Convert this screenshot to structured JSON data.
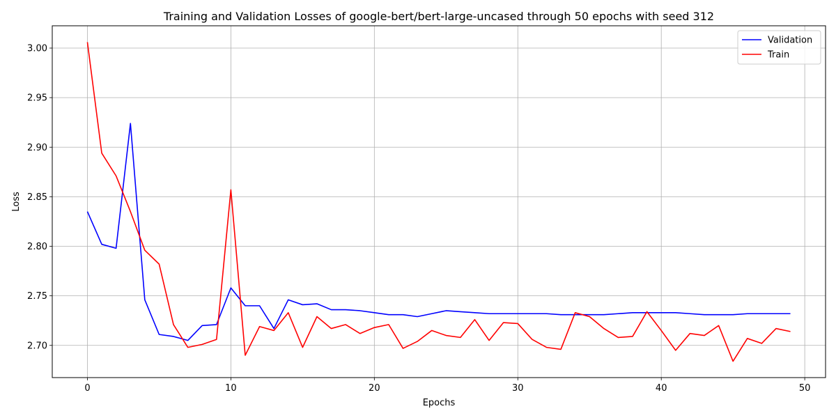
{
  "chart_data": {
    "type": "line",
    "title": "Training and Validation Losses of google-bert/bert-large-uncased through 50 epochs with seed 312",
    "xlabel": "Epochs",
    "ylabel": "Loss",
    "xlim": [
      -2.45,
      51.45
    ],
    "ylim": [
      2.6675,
      3.0225
    ],
    "xticks": [
      0,
      10,
      20,
      30,
      40,
      50
    ],
    "yticks": [
      2.7,
      2.75,
      2.8,
      2.85,
      2.9,
      2.95,
      3.0
    ],
    "xtick_labels": [
      "0",
      "10",
      "20",
      "30",
      "40",
      "50"
    ],
    "ytick_labels": [
      "2.70",
      "2.75",
      "2.80",
      "2.85",
      "2.90",
      "2.95",
      "3.00"
    ],
    "grid": true,
    "legend_position": "top-right",
    "x": [
      0,
      1,
      2,
      3,
      4,
      5,
      6,
      7,
      8,
      9,
      10,
      11,
      12,
      13,
      14,
      15,
      16,
      17,
      18,
      19,
      20,
      21,
      22,
      23,
      24,
      25,
      26,
      27,
      28,
      29,
      30,
      31,
      32,
      33,
      34,
      35,
      36,
      37,
      38,
      39,
      40,
      41,
      42,
      43,
      44,
      45,
      46,
      47,
      48,
      49
    ],
    "series": [
      {
        "name": "Validation",
        "color": "#0000ff",
        "values": [
          2.835,
          2.802,
          2.798,
          2.924,
          2.746,
          2.711,
          2.709,
          2.705,
          2.72,
          2.721,
          2.758,
          2.74,
          2.74,
          2.717,
          2.746,
          2.741,
          2.742,
          2.736,
          2.736,
          2.735,
          2.733,
          2.731,
          2.731,
          2.729,
          2.732,
          2.735,
          2.734,
          2.733,
          2.732,
          2.732,
          2.732,
          2.732,
          2.732,
          2.731,
          2.731,
          2.731,
          2.731,
          2.732,
          2.733,
          2.733,
          2.733,
          2.733,
          2.732,
          2.731,
          2.731,
          2.731,
          2.732,
          2.732,
          2.732,
          2.732
        ]
      },
      {
        "name": "Train",
        "color": "#ff0000",
        "values": [
          3.006,
          2.894,
          2.871,
          2.835,
          2.796,
          2.782,
          2.721,
          2.698,
          2.701,
          2.706,
          2.857,
          2.69,
          2.719,
          2.715,
          2.733,
          2.698,
          2.729,
          2.717,
          2.721,
          2.712,
          2.718,
          2.721,
          2.697,
          2.704,
          2.715,
          2.71,
          2.708,
          2.726,
          2.705,
          2.723,
          2.722,
          2.706,
          2.698,
          2.696,
          2.733,
          2.729,
          2.717,
          2.708,
          2.709,
          2.734,
          2.715,
          2.695,
          2.712,
          2.71,
          2.72,
          2.684,
          2.707,
          2.702,
          2.717,
          2.714
        ]
      }
    ]
  }
}
